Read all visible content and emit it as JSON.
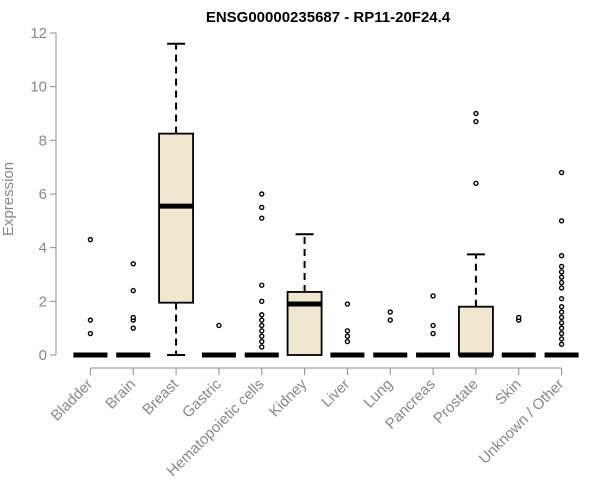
{
  "chart_data": {
    "type": "boxplot",
    "title": "ENSG00000235687 - RP11-20F24.4",
    "ylabel": "Expression",
    "xlabel": "",
    "ylim": [
      0,
      12
    ],
    "yticks": [
      0,
      2,
      4,
      6,
      8,
      10,
      12
    ],
    "box_color": "#efe7cf",
    "categories": [
      "Bladder",
      "Brain",
      "Breast",
      "Gastric",
      "Hematopoietic cells",
      "Kidney",
      "Liver",
      "Lung",
      "Pancreas",
      "Prostate",
      "Skin",
      "Unknown / Other"
    ],
    "boxes": [
      {
        "category": "Bladder",
        "min": 0,
        "q1": 0,
        "median": 0,
        "q3": 0,
        "max": 0,
        "outliers": [
          0.8,
          1.3,
          4.3
        ]
      },
      {
        "category": "Brain",
        "min": 0,
        "q1": 0,
        "median": 0,
        "q3": 0,
        "max": 0,
        "outliers": [
          1.0,
          1.3,
          1.4,
          2.4,
          3.4
        ]
      },
      {
        "category": "Breast",
        "min": 0,
        "q1": 1.95,
        "median": 5.55,
        "q3": 8.25,
        "max": 11.6,
        "outliers": []
      },
      {
        "category": "Gastric",
        "min": 0,
        "q1": 0,
        "median": 0,
        "q3": 0,
        "max": 0,
        "outliers": [
          1.1
        ]
      },
      {
        "category": "Hematopoietic cells",
        "min": 0,
        "q1": 0,
        "median": 0,
        "q3": 0,
        "max": 0,
        "outliers": [
          0.3,
          0.5,
          0.7,
          0.9,
          1.1,
          1.3,
          1.5,
          2.0,
          2.6,
          5.1,
          5.5,
          6.0
        ]
      },
      {
        "category": "Kidney",
        "min": 0,
        "q1": 0,
        "median": 1.9,
        "q3": 2.35,
        "max": 4.5,
        "outliers": []
      },
      {
        "category": "Liver",
        "min": 0,
        "q1": 0,
        "median": 0,
        "q3": 0,
        "max": 0,
        "outliers": [
          0.5,
          0.7,
          0.9,
          1.9
        ]
      },
      {
        "category": "Lung",
        "min": 0,
        "q1": 0,
        "median": 0,
        "q3": 0,
        "max": 0,
        "outliers": [
          1.3,
          1.6
        ]
      },
      {
        "category": "Pancreas",
        "min": 0,
        "q1": 0,
        "median": 0,
        "q3": 0,
        "max": 0,
        "outliers": [
          0.8,
          1.1,
          2.2
        ]
      },
      {
        "category": "Prostate",
        "min": 0,
        "q1": 0,
        "median": 0,
        "q3": 1.8,
        "max": 3.75,
        "outliers": [
          6.4,
          8.7,
          9.0
        ]
      },
      {
        "category": "Skin",
        "min": 0,
        "q1": 0,
        "median": 0,
        "q3": 0,
        "max": 0,
        "outliers": [
          1.3,
          1.4
        ]
      },
      {
        "category": "Unknown / Other",
        "min": 0,
        "q1": 0,
        "median": 0,
        "q3": 0,
        "max": 0,
        "outliers": [
          0.4,
          0.6,
          0.8,
          1.0,
          1.2,
          1.4,
          1.6,
          1.8,
          2.1,
          2.5,
          2.7,
          2.9,
          3.1,
          3.3,
          3.7,
          5.0,
          6.8
        ]
      }
    ]
  }
}
